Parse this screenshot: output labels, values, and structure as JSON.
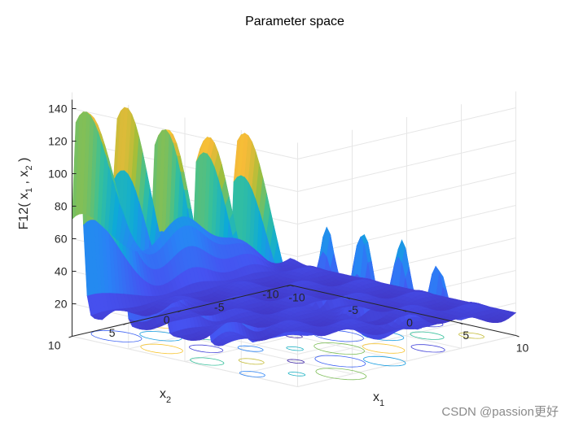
{
  "chart_data": {
    "type": "surface3d",
    "title": "Parameter space",
    "xlabel": "x_1",
    "ylabel": "x_2",
    "zlabel": "F12( x_1 , x_2 )",
    "xlim": [
      -10,
      10
    ],
    "ylim": [
      -10,
      10
    ],
    "zlim": [
      0,
      150
    ],
    "x_ticks": [
      -10,
      -5,
      0,
      5,
      10
    ],
    "y_ticks": [
      -10,
      -5,
      0,
      5,
      10
    ],
    "z_ticks": [
      20,
      40,
      60,
      80,
      100,
      120,
      140
    ],
    "grid": true,
    "colormap": "parula",
    "contour_on_floor": true,
    "surface": {
      "description_values": {
        "peak_max_z": 150,
        "edge_ridge_z_at_x2_10": 80,
        "typical_low_z": 10
      }
    }
  },
  "watermark": "CSDN @passion更好",
  "colors": {
    "axis": "#262626",
    "grid": "#e6e6e6",
    "parula_low": "#3e26a8",
    "parula_high": "#f9fb0e"
  }
}
